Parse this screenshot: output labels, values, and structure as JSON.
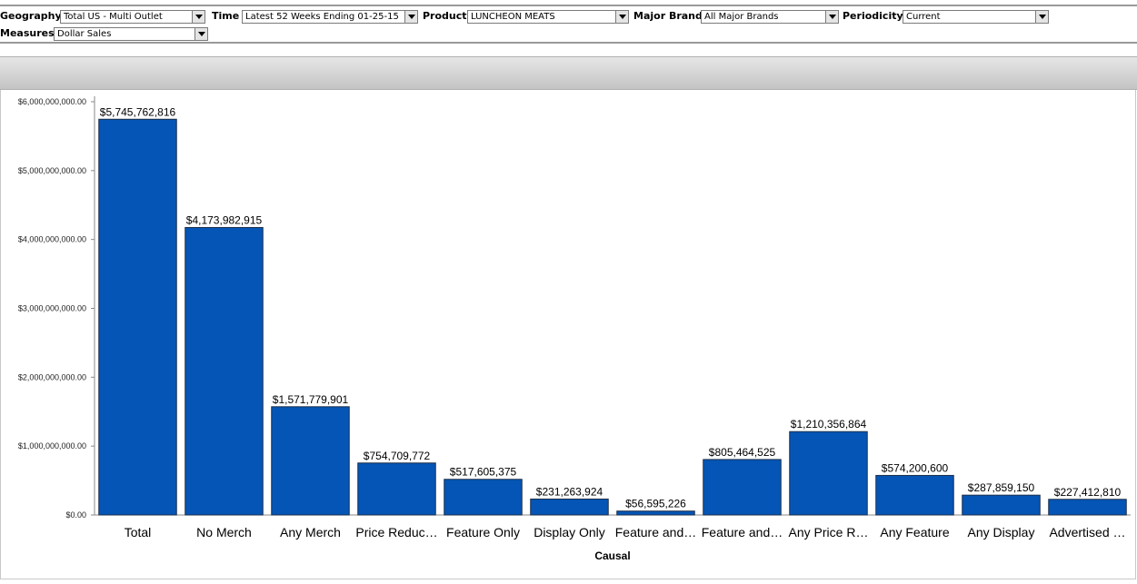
{
  "filters": [
    {
      "label": "Geography",
      "value": "Total US - Multi Outlet"
    },
    {
      "label": "Time",
      "value": "Latest 52 Weeks Ending 01-25-15"
    },
    {
      "label": "Product",
      "value": "LUNCHEON MEATS"
    },
    {
      "label": "Major Brand",
      "value": "All Major Brands"
    },
    {
      "label": "Periodicity",
      "value": "Current"
    },
    {
      "label": "Measures",
      "value": "Dollar Sales"
    }
  ],
  "chart_data": {
    "type": "bar",
    "xlabel": "Causal",
    "categories": [
      "Total",
      "No Merch",
      "Any Merch",
      "Price Reduc…",
      "Feature Only",
      "Display Only",
      "Feature and…",
      "Feature and…",
      "Any Price R…",
      "Any Feature",
      "Any Display",
      "Advertised …"
    ],
    "values": [
      5745762816,
      4173982915,
      1571779901,
      754709772,
      517605375,
      231263924,
      56595226,
      805464525,
      1210356864,
      574200600,
      287859150,
      227412810
    ],
    "value_labels": [
      "$5,745,762,816",
      "$4,173,982,915",
      "$1,571,779,901",
      "$754,709,772",
      "$517,605,375",
      "$231,263,924",
      "$56,595,226",
      "$805,464,525",
      "$1,210,356,864",
      "$574,200,600",
      "$287,859,150",
      "$227,412,810"
    ],
    "color": "#0455b5",
    "ylim": [
      0,
      6000000000
    ],
    "yticks": [
      {
        "value": 0,
        "label": "$0.00"
      },
      {
        "value": 1000000000,
        "label": "$1,000,000,000.00"
      },
      {
        "value": 2000000000,
        "label": "$2,000,000,000.00"
      },
      {
        "value": 3000000000,
        "label": "$3,000,000,000.00"
      },
      {
        "value": 4000000000,
        "label": "$4,000,000,000.00"
      },
      {
        "value": 5000000000,
        "label": "$5,000,000,000.00"
      },
      {
        "value": 6000000000,
        "label": "$6,000,000,000.00"
      }
    ]
  }
}
